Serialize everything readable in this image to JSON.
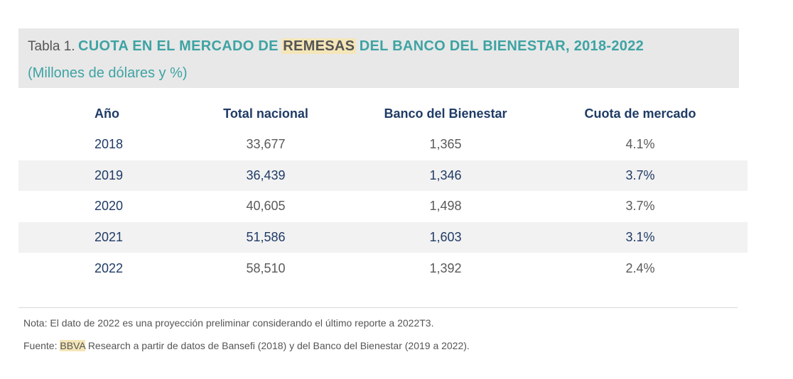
{
  "title": {
    "tabla_label": "Tabla 1.",
    "main_before": "CUOTA EN EL MERCADO DE",
    "main_highlight": "REMESAS",
    "main_after": "DEL BANCO DEL BIENESTAR, 2018-2022",
    "subtitle": "(Millones de dólares y %)"
  },
  "table": {
    "headers": [
      "Año",
      "Total nacional",
      "Banco del Bienestar",
      "Cuota de mercado"
    ],
    "rows": [
      [
        "2018",
        "33,677",
        "1,365",
        "4.1%"
      ],
      [
        "2019",
        "36,439",
        "1,346",
        "3.7%"
      ],
      [
        "2020",
        "40,605",
        "1,498",
        "3.7%"
      ],
      [
        "2021",
        "51,586",
        "1,603",
        "3.1%"
      ],
      [
        "2022",
        "58,510",
        "1,392",
        "2.4%"
      ]
    ]
  },
  "footer": {
    "note": "Nota: El dato de 2022 es una proyección preliminar considerando el último reporte a 2022T3.",
    "source_prefix": "Fuente:",
    "source_highlight": "BBVA",
    "source_rest": "Research a partir de datos de Bansefi (2018) y del Banco del Bienestar (2019 a 2022)."
  }
}
